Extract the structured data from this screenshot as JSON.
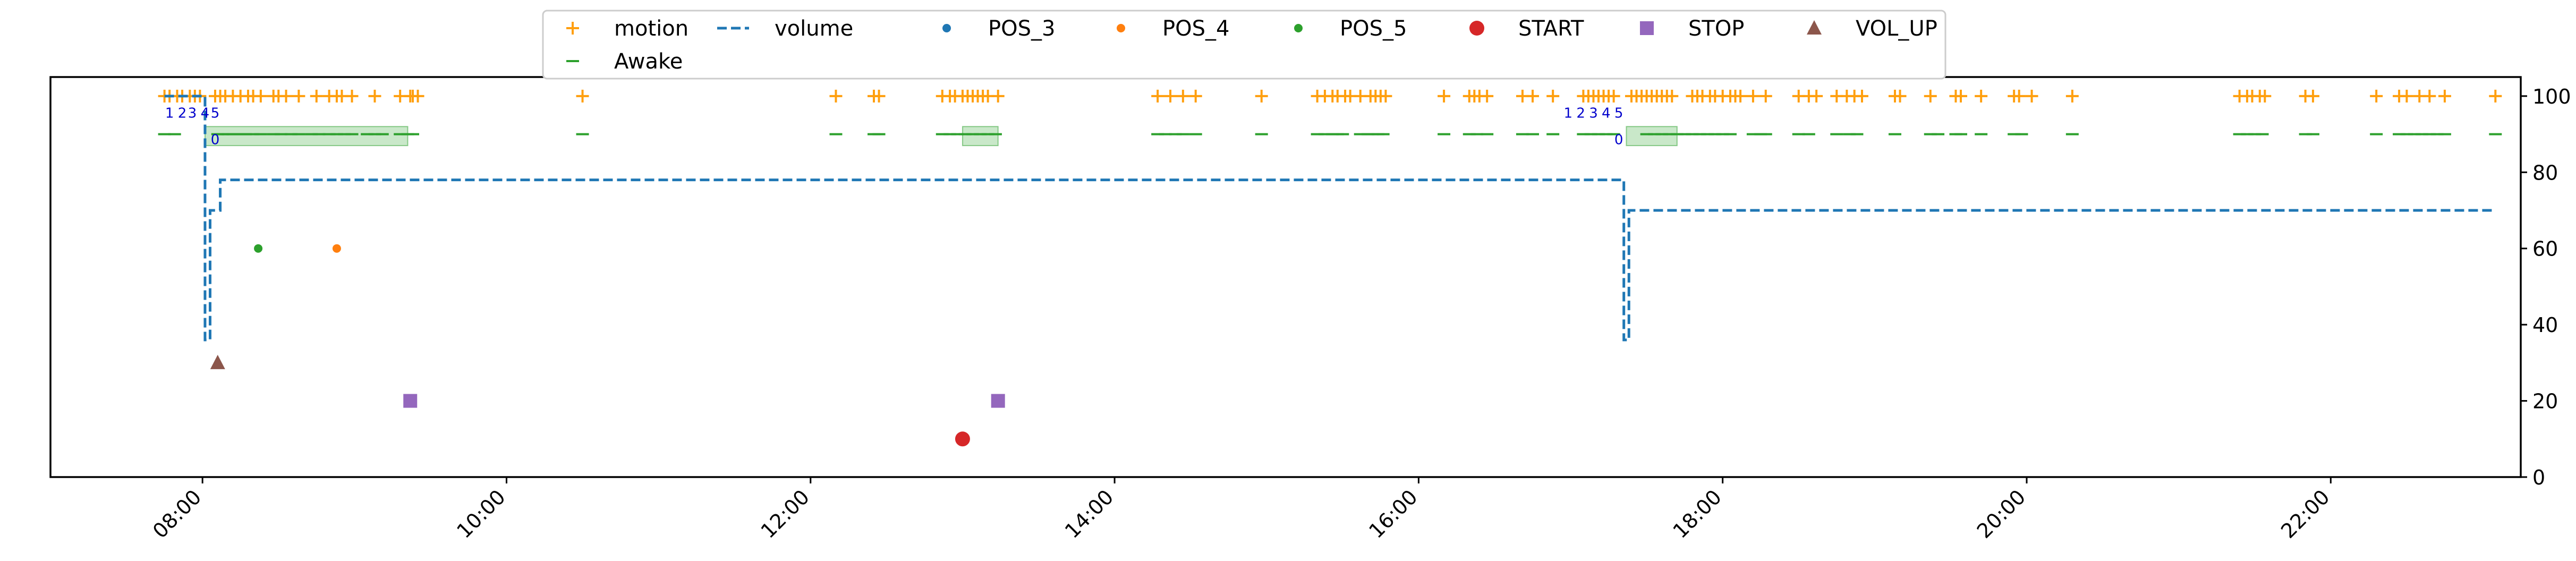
{
  "chart_data": {
    "type": "line",
    "title": "",
    "xlabel": "",
    "ylabel": "",
    "xlim": [
      "07:00",
      "23:15"
    ],
    "ylim": [
      0,
      105
    ],
    "y_axis_side": "right",
    "grid": false,
    "legend_placement": "top-center",
    "x_ticks": [
      "08:00",
      "10:00",
      "12:00",
      "14:00",
      "16:00",
      "18:00",
      "20:00",
      "22:00"
    ],
    "y_ticks": [
      0,
      20,
      40,
      60,
      80,
      100
    ],
    "colors": {
      "motion": "#ff9f0e",
      "volume": "#1f77b4",
      "POS_3": "#1f77b4",
      "POS_4": "#ff7f0e",
      "POS_5": "#2ca02c",
      "START": "#d62728",
      "STOP": "#9467bd",
      "VOL_UP": "#8c564b",
      "Awake": "#2ca02c",
      "annotation": "#0000cc",
      "span": "#b7e0b7"
    },
    "legend": [
      "motion",
      "volume",
      "POS_3",
      "POS_4",
      "POS_5",
      "START",
      "STOP",
      "VOL_UP",
      "Awake"
    ],
    "series": [
      {
        "name": "motion",
        "marker": "+",
        "y": 100,
        "x": [
          "07:45",
          "07:47",
          "07:50",
          "07:52",
          "07:55",
          "07:57",
          "07:59",
          "08:05",
          "08:07",
          "08:09",
          "08:12",
          "08:15",
          "08:18",
          "08:20",
          "08:23",
          "08:28",
          "08:30",
          "08:33",
          "08:38",
          "08:45",
          "08:50",
          "08:53",
          "08:55",
          "08:59",
          "09:08",
          "09:18",
          "09:22",
          "09:23",
          "09:25",
          "10:30",
          "12:10",
          "12:25",
          "12:27",
          "12:52",
          "12:55",
          "12:57",
          "13:00",
          "13:02",
          "13:04",
          "13:06",
          "13:08",
          "13:10",
          "13:14",
          "14:17",
          "14:22",
          "14:27",
          "14:32",
          "14:58",
          "15:20",
          "15:23",
          "15:26",
          "15:28",
          "15:31",
          "15:33",
          "15:37",
          "15:41",
          "15:43",
          "15:45",
          "15:47",
          "16:10",
          "16:20",
          "16:22",
          "16:24",
          "16:27",
          "16:41",
          "16:45",
          "16:53",
          "17:05",
          "17:07",
          "17:09",
          "17:11",
          "17:13",
          "17:15",
          "17:17",
          "17:24",
          "17:26",
          "17:28",
          "17:30",
          "17:32",
          "17:34",
          "17:36",
          "17:38",
          "17:40",
          "17:48",
          "17:50",
          "17:52",
          "17:55",
          "17:57",
          "18:00",
          "18:03",
          "18:05",
          "18:07",
          "18:12",
          "18:17",
          "18:30",
          "18:34",
          "18:37",
          "18:45",
          "18:49",
          "18:52",
          "18:55",
          "19:08",
          "19:10",
          "19:22",
          "19:32",
          "19:34",
          "19:42",
          "19:55",
          "19:57",
          "20:02",
          "20:18",
          "21:24",
          "21:27",
          "21:29",
          "21:32",
          "21:34",
          "21:50",
          "21:53",
          "22:18",
          "22:27",
          "22:30",
          "22:35",
          "22:39",
          "22:45",
          "23:05"
        ]
      },
      {
        "name": "Awake",
        "marker": "_",
        "y": 90,
        "x": [
          "07:45",
          "07:49",
          "08:06",
          "08:08",
          "08:10",
          "08:12",
          "08:15",
          "08:17",
          "08:20",
          "08:23",
          "08:28",
          "08:31",
          "08:35",
          "08:38",
          "08:43",
          "08:46",
          "08:50",
          "08:53",
          "08:56",
          "08:59",
          "09:05",
          "09:08",
          "09:11",
          "09:18",
          "09:21",
          "09:23",
          "10:30",
          "12:10",
          "12:25",
          "12:27",
          "12:52",
          "12:55",
          "12:58",
          "13:01",
          "13:04",
          "13:07",
          "13:10",
          "13:13",
          "14:17",
          "14:20",
          "14:24",
          "14:27",
          "14:32",
          "14:58",
          "15:20",
          "15:23",
          "15:26",
          "15:28",
          "15:30",
          "15:37",
          "15:40",
          "15:42",
          "15:44",
          "15:46",
          "16:10",
          "16:20",
          "16:23",
          "16:27",
          "16:41",
          "16:45",
          "16:53",
          "17:05",
          "17:08",
          "17:11",
          "17:14",
          "17:17",
          "17:30",
          "17:33",
          "17:36",
          "17:39",
          "17:42",
          "17:45",
          "17:48",
          "17:51",
          "17:54",
          "17:57",
          "18:00",
          "18:03",
          "18:12",
          "18:15",
          "18:17",
          "18:30",
          "18:34",
          "18:45",
          "18:50",
          "18:53",
          "19:08",
          "19:22",
          "19:25",
          "19:32",
          "19:34",
          "19:42",
          "19:55",
          "19:58",
          "20:18",
          "21:24",
          "21:27",
          "21:30",
          "21:33",
          "21:50",
          "21:53",
          "22:18",
          "22:27",
          "22:30",
          "22:33",
          "22:36",
          "22:39",
          "22:42",
          "22:45",
          "23:05"
        ]
      },
      {
        "name": "volume",
        "style": "step-dashed",
        "points": [
          [
            "07:45",
            100
          ],
          [
            "08:00",
            100
          ],
          [
            "08:01",
            36
          ],
          [
            "08:03",
            70
          ],
          [
            "08:07",
            78
          ],
          [
            "17:20",
            78
          ],
          [
            "17:21",
            36
          ],
          [
            "17:23",
            70
          ],
          [
            "23:05",
            70
          ]
        ]
      },
      {
        "name": "POS_3",
        "marker": "dot",
        "points": []
      },
      {
        "name": "POS_4",
        "marker": "dot",
        "points": [
          [
            "08:53",
            60
          ]
        ]
      },
      {
        "name": "POS_5",
        "marker": "dot",
        "points": [
          [
            "08:22",
            60
          ]
        ]
      },
      {
        "name": "START",
        "marker": "circle",
        "points": [
          [
            "13:00",
            10
          ]
        ]
      },
      {
        "name": "STOP",
        "marker": "square",
        "points": [
          [
            "09:22",
            20
          ],
          [
            "13:14",
            20
          ]
        ]
      },
      {
        "name": "VOL_UP",
        "marker": "triangle",
        "points": [
          [
            "08:06",
            30
          ]
        ]
      }
    ],
    "spans": [
      {
        "x0": "08:01",
        "x1": "09:21",
        "y0": 87,
        "y1": 92
      },
      {
        "x0": "13:00",
        "x1": "13:14",
        "y0": 87,
        "y1": 92
      },
      {
        "x0": "17:22",
        "x1": "17:42",
        "y0": 87,
        "y1": 92
      }
    ],
    "annotations": [
      {
        "text": "1",
        "x": "07:47",
        "y": 96
      },
      {
        "text": "2",
        "x": "07:52",
        "y": 96
      },
      {
        "text": "3",
        "x": "07:56",
        "y": 96
      },
      {
        "text": "4",
        "x": "08:01",
        "y": 96
      },
      {
        "text": "5",
        "x": "08:05",
        "y": 96
      },
      {
        "text": "0",
        "x": "08:05",
        "y": 89
      },
      {
        "text": "1",
        "x": "16:59",
        "y": 96
      },
      {
        "text": "2",
        "x": "17:04",
        "y": 96
      },
      {
        "text": "3",
        "x": "17:09",
        "y": 96
      },
      {
        "text": "4",
        "x": "17:14",
        "y": 96
      },
      {
        "text": "5",
        "x": "17:19",
        "y": 96
      },
      {
        "text": "0",
        "x": "17:19",
        "y": 89
      }
    ]
  }
}
